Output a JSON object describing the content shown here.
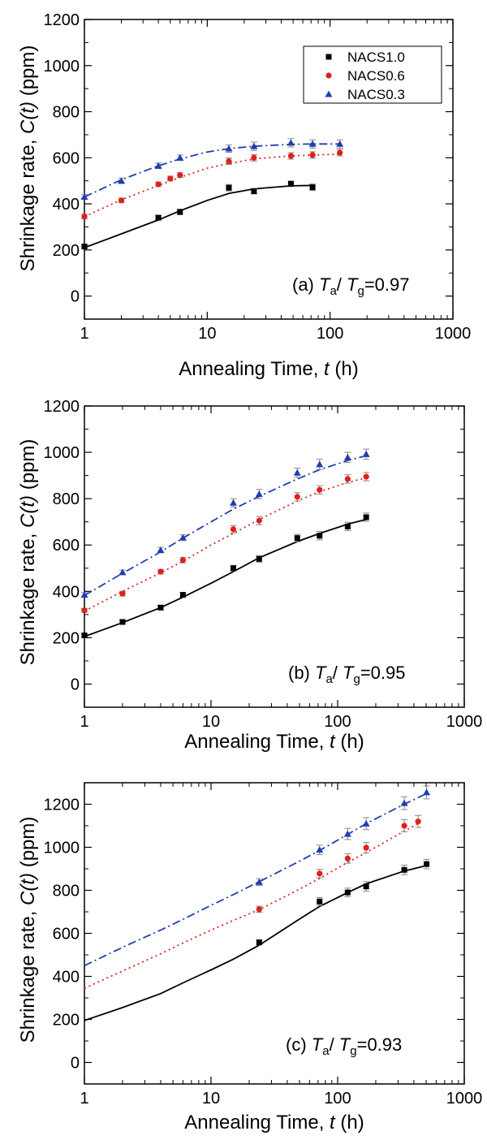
{
  "chart_data": [
    {
      "type": "scatter",
      "panel_label": "(a)",
      "condition": {
        "sym1": "T",
        "sub1": "a",
        "slash": "/",
        "sym2": "T",
        "sub2": "g",
        "value": "=0.97"
      },
      "xlabel": {
        "text": "Annealing Time, ",
        "var": "t",
        "unit": "(h)"
      },
      "ylabel": {
        "text": "Shrinkage rate, ",
        "var": "C(t)",
        "unit": "(ppm)"
      },
      "xscale": "log",
      "xlim": [
        1,
        1000
      ],
      "ylim": [
        -100,
        1200
      ],
      "xticks": [
        1,
        10,
        100,
        1000
      ],
      "xtick_labels": [
        "1",
        "10",
        "100",
        "1000"
      ],
      "yticks": [
        0,
        200,
        400,
        600,
        800,
        1000,
        1200
      ],
      "ytick_labels": [
        "0",
        "200",
        "400",
        "600",
        "800",
        "1000",
        "1200"
      ],
      "legend": {
        "placement": "top-right",
        "entries": [
          "NACS1.0",
          "NACS0.6",
          "NACS0.3"
        ]
      },
      "series": [
        {
          "name": "NACS1.0",
          "color": "#000000",
          "marker": "square",
          "line": "solid",
          "x": [
            1,
            4,
            6,
            15,
            24,
            48,
            72
          ],
          "y": [
            215,
            340,
            365,
            470,
            455,
            487,
            472
          ],
          "err": [
            8,
            10,
            12,
            14,
            12,
            12,
            14
          ],
          "fit_x": [
            1,
            2,
            4,
            6,
            10,
            15,
            24,
            48,
            72
          ],
          "fit_y": [
            210,
            270,
            330,
            370,
            415,
            445,
            465,
            478,
            480
          ]
        },
        {
          "name": "NACS0.6",
          "color": "#e0201c",
          "marker": "circle",
          "line": "dotted",
          "x": [
            1,
            2,
            4,
            5,
            6,
            15,
            24,
            48,
            72,
            120
          ],
          "y": [
            345,
            415,
            485,
            510,
            525,
            585,
            600,
            608,
            612,
            622
          ],
          "err": [
            10,
            10,
            10,
            10,
            10,
            14,
            14,
            14,
            14,
            14
          ],
          "fit_x": [
            1,
            2,
            4,
            6,
            10,
            15,
            24,
            48,
            72,
            120
          ],
          "fit_y": [
            345,
            418,
            480,
            515,
            555,
            575,
            595,
            608,
            612,
            615
          ]
        },
        {
          "name": "NACS0.3",
          "color": "#1f3fb0",
          "marker": "triangle",
          "line": "dashdot",
          "x": [
            1,
            2,
            4,
            6,
            15,
            24,
            48,
            72,
            120
          ],
          "y": [
            430,
            500,
            565,
            600,
            640,
            650,
            665,
            660,
            660
          ],
          "err": [
            10,
            12,
            12,
            12,
            16,
            18,
            18,
            18,
            18
          ],
          "fit_x": [
            1,
            2,
            4,
            6,
            10,
            15,
            24,
            48,
            72,
            120
          ],
          "fit_y": [
            430,
            505,
            565,
            595,
            625,
            640,
            650,
            658,
            660,
            660
          ]
        }
      ]
    },
    {
      "type": "scatter",
      "panel_label": "(b)",
      "condition": {
        "sym1": "T",
        "sub1": "a",
        "slash": "/",
        "sym2": "T",
        "sub2": "g",
        "value": "=0.95"
      },
      "xlabel": {
        "text": "Annealing Time, ",
        "var": "t",
        "unit": "(h)"
      },
      "ylabel": {
        "text": "Shrinkage rate, ",
        "var": "C(t)",
        "unit": "(ppm)"
      },
      "xscale": "log",
      "xlim": [
        1,
        1000
      ],
      "ylim": [
        -100,
        1200
      ],
      "xticks": [
        1,
        10,
        100,
        1000
      ],
      "xtick_labels": [
        "1",
        "10",
        "100",
        "1000"
      ],
      "yticks": [
        0,
        200,
        400,
        600,
        800,
        1000,
        1200
      ],
      "ytick_labels": [
        "0",
        "200",
        "400",
        "600",
        "800",
        "1000",
        "1200"
      ],
      "series": [
        {
          "name": "NACS1.0",
          "color": "#000000",
          "marker": "square",
          "line": "solid",
          "x": [
            1,
            2,
            4,
            6,
            15,
            24,
            48,
            72,
            120,
            168
          ],
          "y": [
            210,
            268,
            330,
            385,
            500,
            540,
            630,
            640,
            680,
            720
          ],
          "err": [
            6,
            8,
            10,
            10,
            12,
            14,
            16,
            18,
            18,
            18
          ],
          "fit_x": [
            1,
            2,
            4,
            6,
            10,
            15,
            24,
            48,
            72,
            120,
            168
          ],
          "fit_y": [
            205,
            265,
            330,
            375,
            435,
            485,
            545,
            615,
            650,
            690,
            710
          ]
        },
        {
          "name": "NACS0.6",
          "color": "#e0201c",
          "marker": "circle",
          "line": "dotted",
          "x": [
            1,
            2,
            4,
            6,
            15,
            24,
            48,
            72,
            120,
            168
          ],
          "y": [
            318,
            390,
            485,
            535,
            668,
            705,
            808,
            838,
            885,
            895
          ],
          "err": [
            8,
            10,
            10,
            12,
            16,
            18,
            18,
            18,
            18,
            18
          ],
          "fit_x": [
            1,
            2,
            4,
            6,
            10,
            15,
            24,
            48,
            72,
            120,
            168
          ],
          "fit_y": [
            315,
            400,
            480,
            530,
            600,
            650,
            710,
            790,
            830,
            870,
            890
          ]
        },
        {
          "name": "NACS0.3",
          "color": "#1f3fb0",
          "marker": "triangle",
          "line": "dashdot",
          "x": [
            1,
            2,
            4,
            6,
            15,
            24,
            48,
            72,
            120,
            168
          ],
          "y": [
            385,
            482,
            578,
            632,
            782,
            820,
            912,
            948,
            978,
            992
          ],
          "err": [
            10,
            10,
            12,
            12,
            18,
            20,
            20,
            22,
            22,
            22
          ],
          "fit_x": [
            1,
            2,
            4,
            6,
            10,
            15,
            24,
            48,
            72,
            120,
            168
          ],
          "fit_y": [
            382,
            478,
            570,
            630,
            700,
            755,
            810,
            885,
            925,
            965,
            985
          ]
        }
      ]
    },
    {
      "type": "scatter",
      "panel_label": "(c)",
      "condition": {
        "sym1": "T",
        "sub1": "a",
        "slash": "/",
        "sym2": "T",
        "sub2": "g",
        "value": "=0.93"
      },
      "xlabel": {
        "text": "Annealing Time, ",
        "var": "t",
        "unit": "(h)"
      },
      "ylabel": {
        "text": "Shrinkage rate, ",
        "var": "C(t)",
        "unit": "(ppm)"
      },
      "xscale": "log",
      "xlim": [
        1,
        1000
      ],
      "ylim": [
        -100,
        1300
      ],
      "xticks": [
        1,
        10,
        100,
        1000
      ],
      "xtick_labels": [
        "1",
        "10",
        "100",
        "1000"
      ],
      "yticks": [
        0,
        200,
        400,
        600,
        800,
        1000,
        1200
      ],
      "ytick_labels": [
        "0",
        "200",
        "400",
        "600",
        "800",
        "1000",
        "1200"
      ],
      "series": [
        {
          "name": "NACS1.0",
          "color": "#000000",
          "marker": "square",
          "line": "solid",
          "x": [
            24,
            72,
            120,
            168,
            336,
            504
          ],
          "y": [
            558,
            748,
            790,
            818,
            895,
            922
          ],
          "err": [
            12,
            18,
            20,
            22,
            22,
            22
          ],
          "fit_x": [
            1,
            2,
            4,
            6,
            10,
            15,
            24,
            48,
            72,
            120,
            168,
            336,
            504
          ],
          "fit_y": [
            195,
            255,
            320,
            370,
            430,
            480,
            545,
            660,
            725,
            790,
            830,
            890,
            915
          ]
        },
        {
          "name": "NACS0.6",
          "color": "#e0201c",
          "marker": "circle",
          "line": "dotted",
          "x": [
            24,
            72,
            120,
            168,
            336,
            432
          ],
          "y": [
            712,
            878,
            948,
            998,
            1100,
            1120
          ],
          "err": [
            14,
            20,
            22,
            24,
            28,
            28
          ],
          "fit_x": [
            1,
            2,
            4,
            6,
            10,
            15,
            24,
            48,
            72,
            120,
            168,
            336,
            432
          ],
          "fit_y": [
            345,
            425,
            505,
            555,
            615,
            660,
            710,
            800,
            855,
            930,
            975,
            1075,
            1110
          ]
        },
        {
          "name": "NACS0.3",
          "color": "#1f3fb0",
          "marker": "triangle",
          "line": "dashdot",
          "x": [
            24,
            72,
            120,
            168,
            336,
            504
          ],
          "y": [
            838,
            988,
            1062,
            1110,
            1205,
            1255
          ],
          "err": [
            16,
            22,
            26,
            28,
            30,
            30
          ],
          "fit_x": [
            1,
            2,
            4,
            6,
            10,
            15,
            24,
            48,
            72,
            120,
            168,
            336,
            504
          ],
          "fit_y": [
            450,
            535,
            615,
            665,
            730,
            780,
            840,
            930,
            985,
            1060,
            1110,
            1200,
            1250
          ]
        }
      ]
    }
  ]
}
